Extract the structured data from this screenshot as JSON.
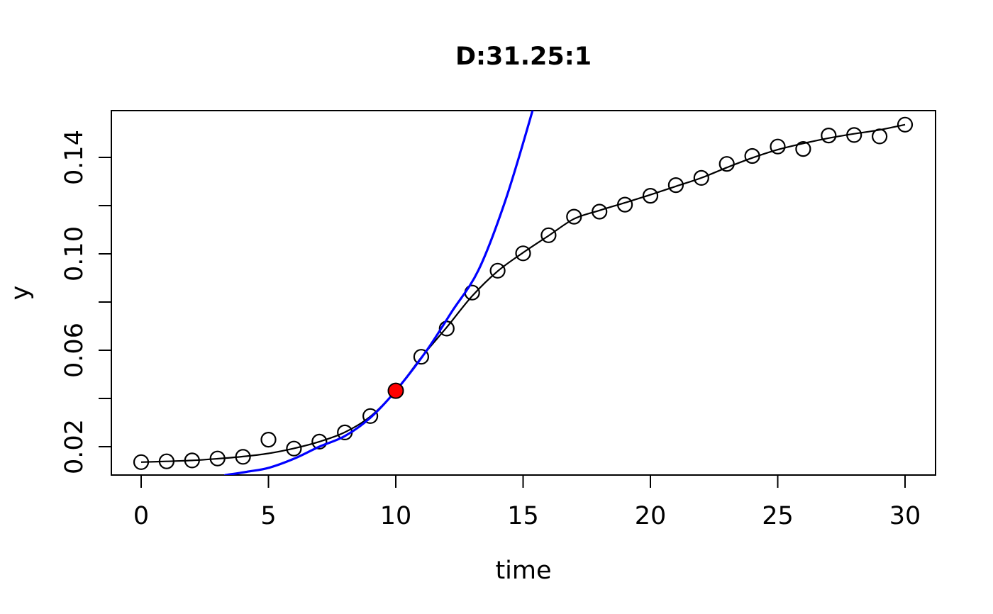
{
  "figure": {
    "background": "#ffffff",
    "foreground": "#000000"
  },
  "chart_data": {
    "type": "scatter",
    "title": "D:31.25:1",
    "xlabel": "time",
    "ylabel": "y",
    "xlim": [
      -1.2,
      31.2
    ],
    "ylim": [
      0.0082,
      0.1594
    ],
    "grid": false,
    "legend": "none",
    "x_ticks": [
      0,
      5,
      10,
      15,
      20,
      25,
      30
    ],
    "x_tick_labels": [
      "0",
      "5",
      "10",
      "15",
      "20",
      "25",
      "30"
    ],
    "y_ticks": [
      0.02,
      0.04,
      0.06,
      0.08,
      0.1,
      0.12,
      0.14
    ],
    "y_tick_labels": [
      "0.02",
      "",
      "0.06",
      "",
      "0.10",
      "",
      "0.14"
    ],
    "colors": {
      "observed_points": "#000000",
      "fitted_curve": "#000000",
      "exponential_curve": "#0000ff",
      "highlight_point": "#ff0000"
    },
    "series": [
      {
        "name": "observed-points",
        "type": "points",
        "marker": "open-circle",
        "color": "#000000",
        "x": [
          0,
          1,
          2,
          3,
          4,
          5,
          6,
          7,
          8,
          9,
          10,
          11,
          12,
          13,
          14,
          15,
          16,
          17,
          18,
          19,
          20,
          21,
          22,
          23,
          24,
          25,
          26,
          27,
          28,
          29,
          30
        ],
        "y": [
          0.0136,
          0.0139,
          0.0143,
          0.0151,
          0.0158,
          0.0229,
          0.0192,
          0.0221,
          0.0259,
          0.0327,
          0.0432,
          0.0573,
          0.069,
          0.0839,
          0.093,
          0.1002,
          0.1077,
          0.1154,
          0.1175,
          0.1204,
          0.1241,
          0.1285,
          0.1315,
          0.1373,
          0.1406,
          0.1445,
          0.1435,
          0.1491,
          0.1493,
          0.1487,
          0.1536
        ]
      },
      {
        "name": "fitted-curve",
        "type": "line",
        "color": "#000000",
        "x": [
          0,
          1,
          2,
          3,
          4,
          5,
          6,
          7,
          8,
          9,
          10,
          11,
          12,
          13,
          14,
          15,
          16,
          17,
          18,
          19,
          20,
          21,
          22,
          23,
          24,
          25,
          26,
          27,
          28,
          29,
          30
        ],
        "y": [
          0.0136,
          0.0139,
          0.0143,
          0.015,
          0.0159,
          0.0172,
          0.0193,
          0.0221,
          0.026,
          0.0325,
          0.0432,
          0.057,
          0.0695,
          0.0825,
          0.0928,
          0.1005,
          0.1075,
          0.1145,
          0.118,
          0.1212,
          0.1245,
          0.128,
          0.1315,
          0.1358,
          0.1398,
          0.1432,
          0.1458,
          0.148,
          0.1498,
          0.1514,
          0.1536
        ]
      },
      {
        "name": "exponential-curve",
        "type": "line",
        "color": "#0000ff",
        "x": [
          3.3,
          4.15,
          5,
          6,
          7,
          8,
          9,
          10,
          11.2,
          12.2,
          13.26,
          14.3,
          15.37,
          15.6
        ],
        "y": [
          0.0082,
          0.0096,
          0.0112,
          0.015,
          0.02,
          0.0244,
          0.032,
          0.0432,
          0.0597,
          0.076,
          0.0935,
          0.122,
          0.1594,
          0.17
        ]
      },
      {
        "name": "highlight-point",
        "type": "points",
        "marker": "filled-circle",
        "color": "#ff0000",
        "x": [
          10
        ],
        "y": [
          0.0432
        ]
      }
    ]
  }
}
